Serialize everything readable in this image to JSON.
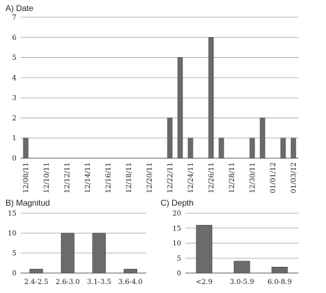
{
  "chart_data": [
    {
      "type": "bar",
      "title": "A) Date",
      "xlabel": "",
      "ylabel": "",
      "ylim": [
        0,
        7
      ],
      "yticks": [
        0,
        1,
        2,
        3,
        4,
        5,
        6,
        7
      ],
      "grid": true,
      "x_tick_labels": [
        "12/08/11",
        "12/10/11",
        "12/12/11",
        "12/14/11",
        "12/16/11",
        "12/18/11",
        "12/20/11",
        "12/22/11",
        "12/24/11",
        "12/26/11",
        "12/28/11",
        "12/30/11",
        "01/01/12",
        "01/03/12"
      ],
      "categories": [
        "12/08/11",
        "12/09/11",
        "12/10/11",
        "12/11/11",
        "12/12/11",
        "12/13/11",
        "12/14/11",
        "12/15/11",
        "12/16/11",
        "12/17/11",
        "12/18/11",
        "12/19/11",
        "12/20/11",
        "12/21/11",
        "12/22/11",
        "12/23/11",
        "12/24/11",
        "12/25/11",
        "12/26/11",
        "12/27/11",
        "12/28/11",
        "12/29/11",
        "12/30/11",
        "12/31/11",
        "01/01/12",
        "01/02/12",
        "01/03/12"
      ],
      "values": [
        1,
        0,
        0,
        0,
        0,
        0,
        0,
        0,
        0,
        0,
        0,
        0,
        0,
        0,
        2,
        5,
        1,
        0,
        6,
        1,
        0,
        0,
        1,
        2,
        0,
        1,
        1
      ]
    },
    {
      "type": "bar",
      "title": "B) Magnitud",
      "xlabel": "",
      "ylabel": "",
      "ylim": [
        0,
        15
      ],
      "yticks": [
        0,
        5,
        10,
        15
      ],
      "grid": true,
      "categories": [
        "2.4-2.5",
        "2.6-3.0",
        "3.1-3.5",
        "3.6-4.0"
      ],
      "values": [
        1,
        10,
        10,
        1
      ]
    },
    {
      "type": "bar",
      "title": "C) Depth",
      "xlabel": "",
      "ylabel": "",
      "ylim": [
        0,
        20
      ],
      "yticks": [
        0,
        5,
        10,
        15,
        20
      ],
      "grid": true,
      "categories": [
        "<2.9",
        "3.0-5.9",
        "6.0-8.9"
      ],
      "values": [
        16,
        4,
        2
      ]
    }
  ]
}
